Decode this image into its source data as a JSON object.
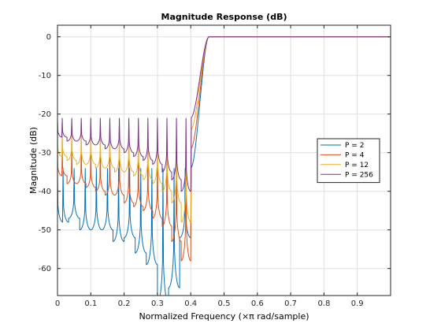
{
  "chart_data": {
    "type": "line",
    "title": "Magnitude Response (dB)",
    "xlabel": "Normalized Frequency (×π rad/sample)",
    "ylabel": "Magnitude (dB)",
    "xlim": [
      0,
      1
    ],
    "ylim": [
      -67,
      3
    ],
    "xticks": [
      0,
      0.1,
      0.2,
      0.3,
      0.4,
      0.5,
      0.6,
      0.7,
      0.8,
      0.9
    ],
    "xtick_labels": [
      "0",
      "0.1",
      "0.2",
      "0.3",
      "0.4",
      "0.5",
      "0.6",
      "0.7",
      "0.8",
      "0.9"
    ],
    "yticks": [
      0,
      -10,
      -20,
      -30,
      -40,
      -50,
      -60
    ],
    "ytick_labels": [
      "0",
      "-10",
      "-20",
      "-30",
      "-40",
      "-50",
      "-60"
    ],
    "grid": true,
    "legend_position": "right",
    "stopband_edge": 0.4,
    "passband_start": 0.455,
    "series": [
      {
        "name": "P = 2",
        "color": "#0072bd",
        "sidelobe_peak_db": -34,
        "lobes": 12,
        "null_depths_db": [
          -48,
          -47,
          -50,
          -50,
          -50,
          -53,
          -52,
          -56,
          -59,
          -69,
          -65,
          -52
        ]
      },
      {
        "name": "P = 4",
        "color": "#d95319",
        "sidelobe_peak_db": -29,
        "lobes": 14,
        "null_depths_db": [
          -36,
          -38,
          -38,
          -39,
          -40,
          -41,
          -41,
          -43,
          -44,
          -45,
          -47,
          -49,
          -53,
          -58
        ]
      },
      {
        "name": "P = 12",
        "color": "#edb120",
        "sidelobe_peak_db": -24,
        "lobes": 14,
        "null_depths_db": [
          -31,
          -32,
          -33,
          -33,
          -34,
          -34,
          -35,
          -35,
          -36,
          -37,
          -38,
          -40,
          -43,
          -48
        ]
      },
      {
        "name": "P = 256",
        "color": "#7e2f8e",
        "sidelobe_peak_db": -21,
        "lobes": 14,
        "null_depths_db": [
          -26,
          -27,
          -27,
          -28,
          -28,
          -29,
          -29,
          -30,
          -31,
          -32,
          -33,
          -35,
          -37,
          -40
        ]
      }
    ]
  }
}
